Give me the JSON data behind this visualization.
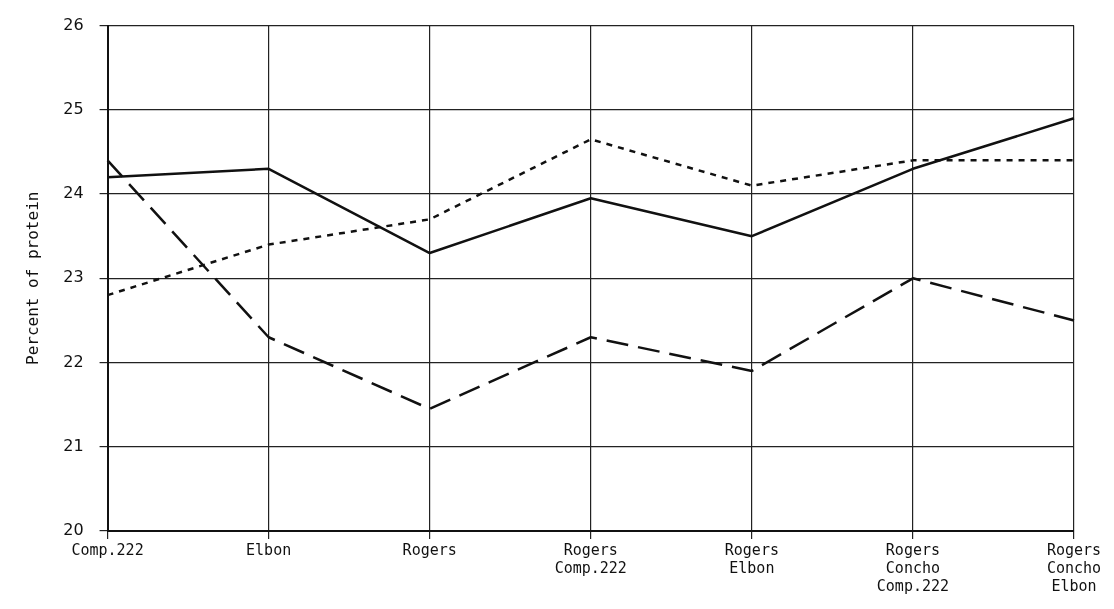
{
  "chart_data": {
    "type": "line",
    "ylabel": "Percent of protein",
    "categories": [
      "Comp.222",
      "Elbon",
      "Rogers",
      "Rogers Comp.222",
      "Rogers Elbon",
      "Rogers Concho Comp.222",
      "Rogers Concho Elbon"
    ],
    "series": [
      {
        "color": "#111111",
        "line_style": "solid",
        "values": [
          24.2,
          24.3,
          23.3,
          23.95,
          23.5,
          24.3,
          24.9
        ]
      },
      {
        "color": "#111111",
        "line_style": "dotted",
        "values": [
          22.8,
          23.4,
          23.7,
          24.65,
          24.1,
          24.4,
          24.4
        ]
      },
      {
        "color": "#111111",
        "line_style": "dashed",
        "values": [
          24.4,
          22.3,
          21.45,
          22.3,
          21.9,
          23.0,
          22.5
        ]
      }
    ],
    "ylim": [
      20,
      26
    ],
    "yticks": [
      20,
      21,
      22,
      23,
      24,
      25,
      26
    ],
    "grid": true,
    "legend": false,
    "marker": "none"
  }
}
